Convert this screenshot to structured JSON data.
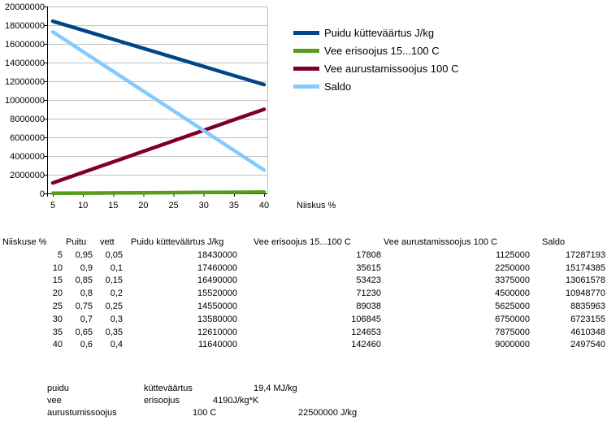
{
  "chart_data": {
    "type": "line",
    "title": "",
    "xlabel": "Niiskus %",
    "x": [
      5,
      10,
      15,
      20,
      25,
      30,
      35,
      40
    ],
    "xticks": [
      5,
      10,
      15,
      20,
      25,
      30,
      35,
      40
    ],
    "ylim": [
      0,
      20000000
    ],
    "yticks": [
      0,
      2000000,
      4000000,
      6000000,
      8000000,
      10000000,
      12000000,
      14000000,
      16000000,
      18000000,
      20000000
    ],
    "grid": "horizontal",
    "legend_position": "right",
    "axis_color": "#000000",
    "grid_color": "#C0C0C0",
    "background_color": "#FFFFFF",
    "series": [
      {
        "name": "Puidu kütteväärtus J/kg",
        "color": "#004586",
        "values": [
          18430000,
          17460000,
          16490000,
          15520000,
          14550000,
          13580000,
          12610000,
          11640000
        ]
      },
      {
        "name": "Vee erisoojus 15...100 C",
        "color": "#579D1C",
        "values": [
          17808,
          35615,
          53423,
          71230,
          89038,
          106845,
          124653,
          142460
        ]
      },
      {
        "name": "Vee aurustamissoojus 100 C",
        "color": "#7E0021",
        "values": [
          1125000,
          2250000,
          3375000,
          4500000,
          5625000,
          6750000,
          7875000,
          9000000
        ]
      },
      {
        "name": "Saldo",
        "color": "#83CAFF",
        "values": [
          17287193,
          15174385,
          13061578,
          10948770,
          8835963,
          6723155,
          4610348,
          2497540
        ]
      }
    ]
  },
  "table": {
    "headers": [
      "Niiskuse %",
      "Puitu",
      "vett",
      "Puidu kütteväärtus J/kg",
      "Vee erisoojus 15...100 C",
      "Vee aurustamissoojus 100 C",
      "Saldo"
    ],
    "rows": [
      [
        "5",
        "0,95",
        "0,05",
        "18430000",
        "17808",
        "1125000",
        "17287193"
      ],
      [
        "10",
        "0,9",
        "0,1",
        "17460000",
        "35615",
        "2250000",
        "15174385"
      ],
      [
        "15",
        "0,85",
        "0,15",
        "16490000",
        "53423",
        "3375000",
        "13061578"
      ],
      [
        "20",
        "0,8",
        "0,2",
        "15520000",
        "71230",
        "4500000",
        "10948770"
      ],
      [
        "25",
        "0,75",
        "0,25",
        "14550000",
        "89038",
        "5625000",
        "8835963"
      ],
      [
        "30",
        "0,7",
        "0,3",
        "13580000",
        "106845",
        "6750000",
        "6723155"
      ],
      [
        "35",
        "0,65",
        "0,35",
        "12610000",
        "124653",
        "7875000",
        "4610348"
      ],
      [
        "40",
        "0,6",
        "0,4",
        "11640000",
        "142460",
        "9000000",
        "2497540"
      ]
    ]
  },
  "notes": {
    "rows": [
      {
        "label": "puidu",
        "property": "kütteväärtus",
        "value": "19,4 MJ/kg"
      },
      {
        "label": "vee",
        "property": "erisoojus",
        "value": "4190J/kg*K"
      },
      {
        "label": "aurustumissoojus",
        "property": "100 C",
        "value": "22500000 J/kg"
      }
    ]
  }
}
